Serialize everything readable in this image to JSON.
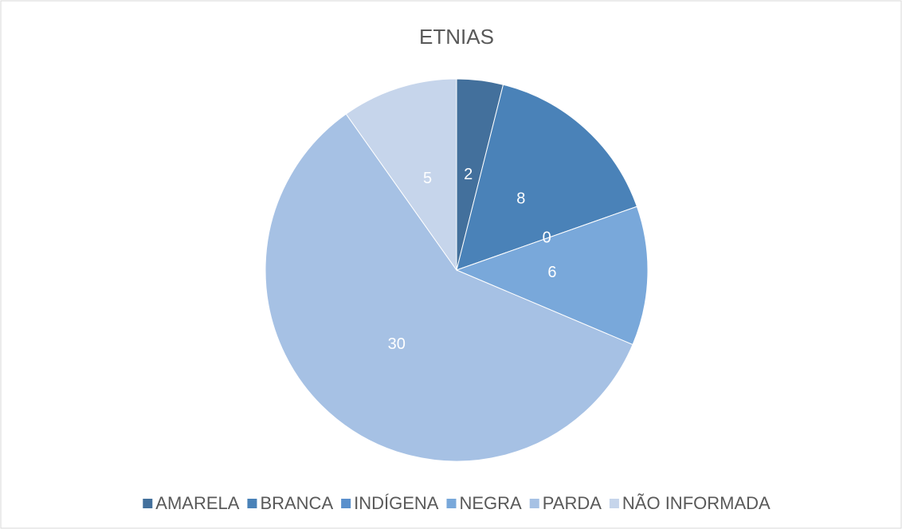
{
  "chart_data": {
    "type": "pie",
    "title": "ETNIAS",
    "categories": [
      "AMARELA",
      "BRANCA",
      "INDÍGENA",
      "NEGRA",
      "PARDA",
      "NÃO INFORMADA"
    ],
    "values": [
      2,
      8,
      0,
      6,
      30,
      5
    ],
    "colors": [
      "#43709c",
      "#4a82b8",
      "#5a90cc",
      "#79a8da",
      "#a6c1e4",
      "#c6d5eb"
    ],
    "legend": "bottom"
  }
}
